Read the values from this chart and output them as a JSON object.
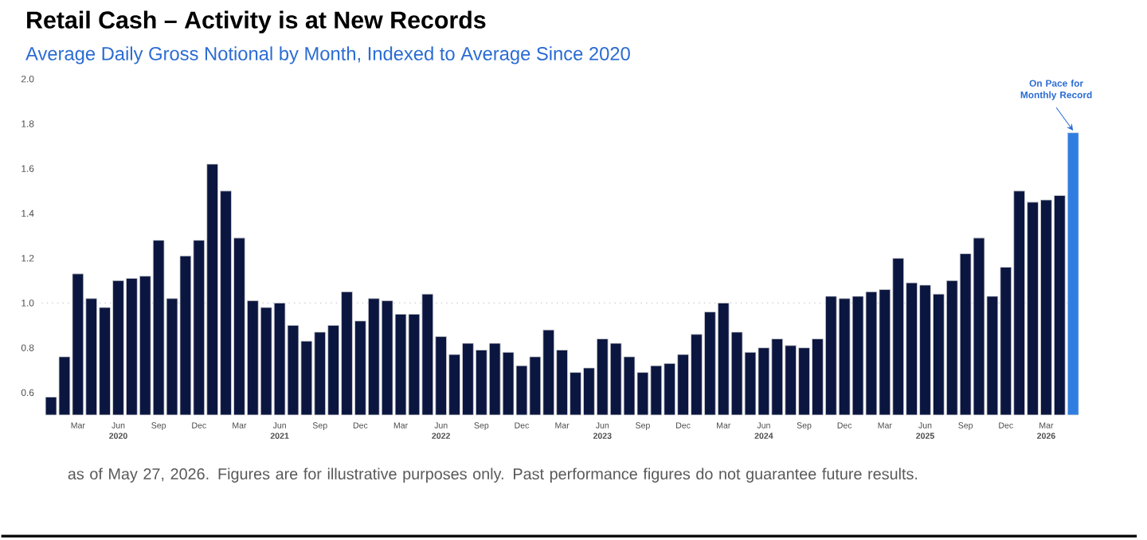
{
  "chart_data": {
    "type": "bar",
    "title": "Retail Cash – Activity is at New Records",
    "subtitle": "Average Daily Gross Notional by Month, Indexed to Average Since 2020",
    "categories": [
      null,
      null,
      "Mar",
      null,
      null,
      "Jun **2020**",
      null,
      null,
      "Sep",
      null,
      null,
      "Dec",
      null,
      null,
      "Mar",
      null,
      null,
      "Jun **2021**",
      null,
      null,
      "Sep",
      null,
      null,
      "Dec",
      null,
      null,
      "Mar",
      null,
      null,
      "Jun **2022**",
      null,
      null,
      "Sep",
      null,
      null,
      "Dec",
      null,
      null,
      "Mar",
      null,
      null,
      "Jun **2023**",
      null,
      null,
      "Sep",
      null,
      null,
      "Dec",
      null,
      null,
      "Mar",
      null,
      null,
      "Jun **2024**",
      null,
      null,
      "Sep",
      null,
      null,
      "Dec",
      null,
      null,
      "Mar",
      null,
      null,
      "Jun **2025**",
      null,
      null,
      "Sep",
      null,
      null,
      "Dec",
      null,
      null,
      "Mar **2026**",
      null,
      null
    ],
    "values": [
      0.58,
      0.76,
      1.13,
      1.02,
      0.98,
      1.1,
      1.11,
      1.12,
      1.28,
      1.02,
      1.21,
      1.28,
      1.62,
      1.5,
      1.29,
      1.01,
      0.98,
      1.0,
      0.9,
      0.83,
      0.87,
      0.9,
      1.05,
      0.92,
      1.02,
      1.01,
      0.95,
      0.95,
      1.04,
      0.85,
      0.77,
      0.82,
      0.79,
      0.82,
      0.78,
      0.72,
      0.76,
      0.88,
      0.79,
      0.69,
      0.71,
      0.84,
      0.82,
      0.76,
      0.69,
      0.72,
      0.73,
      0.77,
      0.86,
      0.96,
      1.0,
      0.87,
      0.78,
      0.8,
      0.84,
      0.81,
      0.8,
      0.84,
      1.03,
      1.02,
      1.03,
      1.05,
      1.06,
      1.2,
      1.09,
      1.08,
      1.04,
      1.1,
      1.22,
      1.29,
      1.03,
      1.16,
      1.5,
      1.45,
      1.46,
      1.48,
      1.76
    ],
    "colors": [
      "#0b1640",
      "#0b1640",
      "#0b1640",
      "#0b1640",
      "#0b1640",
      "#0b1640",
      "#0b1640",
      "#0b1640",
      "#0b1640",
      "#0b1640",
      "#0b1640",
      "#0b1640",
      "#0b1640",
      "#0b1640",
      "#0b1640",
      "#0b1640",
      "#0b1640",
      "#0b1640",
      "#0b1640",
      "#0b1640",
      "#0b1640",
      "#0b1640",
      "#0b1640",
      "#0b1640",
      "#0b1640",
      "#0b1640",
      "#0b1640",
      "#0b1640",
      "#0b1640",
      "#0b1640",
      "#0b1640",
      "#0b1640",
      "#0b1640",
      "#0b1640",
      "#0b1640",
      "#0b1640",
      "#0b1640",
      "#0b1640",
      "#0b1640",
      "#0b1640",
      "#0b1640",
      "#0b1640",
      "#0b1640",
      "#0b1640",
      "#0b1640",
      "#0b1640",
      "#0b1640",
      "#0b1640",
      "#0b1640",
      "#0b1640",
      "#0b1640",
      "#0b1640",
      "#0b1640",
      "#0b1640",
      "#0b1640",
      "#0b1640",
      "#0b1640",
      "#0b1640",
      "#0b1640",
      "#0b1640",
      "#0b1640",
      "#0b1640",
      "#0b1640",
      "#0b1640",
      "#0b1640",
      "#0b1640",
      "#0b1640",
      "#0b1640",
      "#0b1640",
      "#0b1640",
      "#0b1640",
      "#0b1640",
      "#0b1640",
      "#0b1640",
      "#0b1640",
      "#0b1640",
      "#2f7de1"
    ],
    "ylim": [
      0.5,
      2.0
    ],
    "yticks": [
      {
        "value": 0.6,
        "label": "0.6"
      },
      {
        "value": 0.8,
        "label": "0.8"
      },
      {
        "value": 1.0,
        "label": "1.0"
      },
      {
        "value": 1.2,
        "label": "1.2"
      },
      {
        "value": 1.4,
        "label": "1.4"
      },
      {
        "value": 1.6,
        "label": "1.6"
      },
      {
        "value": 1.8,
        "label": "1.8"
      },
      {
        "value": 2.0,
        "label": "2.0"
      }
    ],
    "ref_lines": [
      {
        "axis": "y",
        "value": 1.0,
        "color": "#c8c8c8",
        "line_style": "dotted"
      }
    ],
    "annotations": [
      "On Pace for Monthly Record",
      "as of May 27, 2026. Figures are for illustrative purposes only. Past performance figures do not guarantee future results."
    ],
    "grid": false
  }
}
